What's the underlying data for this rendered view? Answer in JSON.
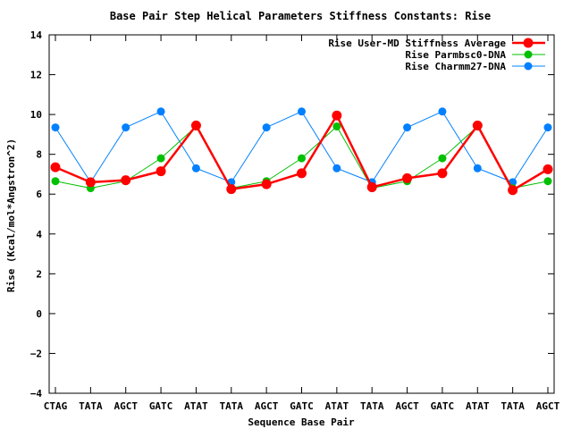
{
  "chart_data": {
    "type": "line",
    "title": "Base Pair Step Helical Parameters Stiffness Constants: Rise",
    "xlabel": "Sequence Base Pair",
    "ylabel": "Rise (Kcal/mol*Angstron^2)",
    "categories": [
      "CTAG",
      "TATA",
      "AGCT",
      "GATC",
      "ATAT",
      "TATA",
      "AGCT",
      "GATC",
      "ATAT",
      "TATA",
      "AGCT",
      "GATC",
      "ATAT",
      "TATA",
      "AGCT"
    ],
    "ylim": [
      -4,
      14
    ],
    "yticks": [
      -4,
      -2,
      0,
      2,
      4,
      6,
      8,
      10,
      12,
      14
    ],
    "grid": false,
    "legend_position": "top-right",
    "series": [
      {
        "name": "Rise User-MD Stiffness Average",
        "color": "#ff0000",
        "values": [
          7.35,
          6.6,
          6.7,
          7.15,
          9.45,
          6.25,
          6.5,
          7.05,
          9.95,
          6.35,
          6.8,
          7.05,
          9.45,
          6.2,
          7.25
        ]
      },
      {
        "name": "Rise Parmbsc0-DNA",
        "color": "#00c000",
        "values": [
          6.65,
          6.3,
          6.65,
          7.8,
          9.4,
          6.3,
          6.65,
          7.8,
          9.4,
          6.3,
          6.65,
          7.8,
          9.4,
          6.3,
          6.65
        ]
      },
      {
        "name": "Rise Charmm27-DNA",
        "color": "#0080ff",
        "values": [
          9.35,
          6.6,
          9.35,
          10.15,
          7.3,
          6.6,
          9.35,
          10.15,
          7.3,
          6.6,
          9.35,
          10.15,
          7.3,
          6.6,
          9.35
        ]
      }
    ]
  }
}
